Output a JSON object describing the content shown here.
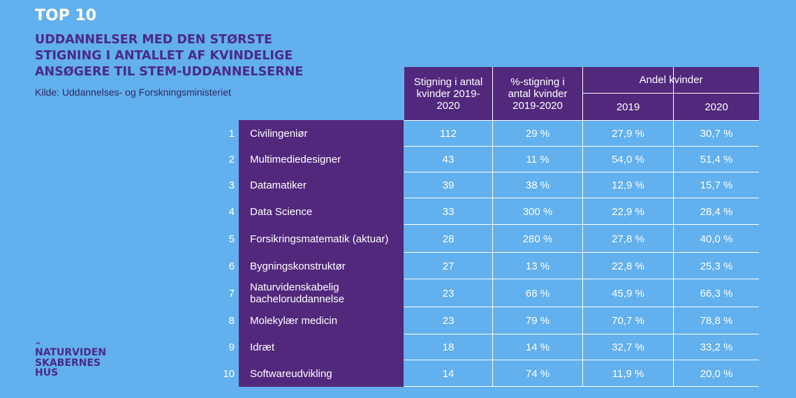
{
  "header": {
    "top_label": "TOP 10",
    "headline": "UDDANNELSER MED DEN STØRSTE STIGNING I ANTALLET AF KVINDELIGE ANSØGERE TIL STEM-UDDANNELSERNE",
    "source": "Kilde: Uddannelses- og Forskningsministeriet"
  },
  "table": {
    "col_increase": "Stigning i antal kvinder 2019-2020",
    "col_pct_increase": "%-stigning i antal kvinder 2019-2020",
    "col_share_women": "Andel kvinder",
    "col_2019": "2019",
    "col_2020": "2020",
    "rows": [
      {
        "rank": "1",
        "name": "Civilingeniør",
        "increase": "112",
        "pct": "29 %",
        "share_2019": "27,9 %",
        "share_2020": "30,7 %"
      },
      {
        "rank": "2",
        "name": "Multimediedesigner",
        "increase": "43",
        "pct": "11 %",
        "share_2019": "54,0 %",
        "share_2020": "51,4 %"
      },
      {
        "rank": "3",
        "name": "Datamatiker",
        "increase": "39",
        "pct": "38 %",
        "share_2019": "12,9 %",
        "share_2020": "15,7 %"
      },
      {
        "rank": "4",
        "name": "Data Science",
        "increase": "33",
        "pct": "300 %",
        "share_2019": "22,9 %",
        "share_2020": "28,4 %"
      },
      {
        "rank": "5",
        "name": "Forsikringsmatematik (aktuar)",
        "increase": "28",
        "pct": "280 %",
        "share_2019": "27,8 %",
        "share_2020": "40,0 %"
      },
      {
        "rank": "6",
        "name": "Bygningskonstruktør",
        "increase": "27",
        "pct": "13 %",
        "share_2019": "22,8 %",
        "share_2020": "25,3 %"
      },
      {
        "rank": "7",
        "name": "Naturvidenskabelig bacheloruddannelse",
        "increase": "23",
        "pct": "68 %",
        "share_2019": "45,9 %",
        "share_2020": "66,3 %"
      },
      {
        "rank": "8",
        "name": "Molekylær medicin",
        "increase": "23",
        "pct": "79 %",
        "share_2019": "70,7 %",
        "share_2020": "78,8 %"
      },
      {
        "rank": "9",
        "name": "Idræt",
        "increase": "18",
        "pct": "14 %",
        "share_2019": "32,7 %",
        "share_2020": "33,2 %"
      },
      {
        "rank": "10",
        "name": "Softwareudvikling",
        "increase": "14",
        "pct": "74 %",
        "share_2019": "11,9 %",
        "share_2020": "20,0 %"
      }
    ]
  },
  "logo": {
    "line1": "NATURVIDEN",
    "line2": "SKABERNES",
    "line3": "HUS"
  },
  "colors": {
    "background": "#62b0ee",
    "purple": "#52287c",
    "headline": "#4a2a85"
  }
}
